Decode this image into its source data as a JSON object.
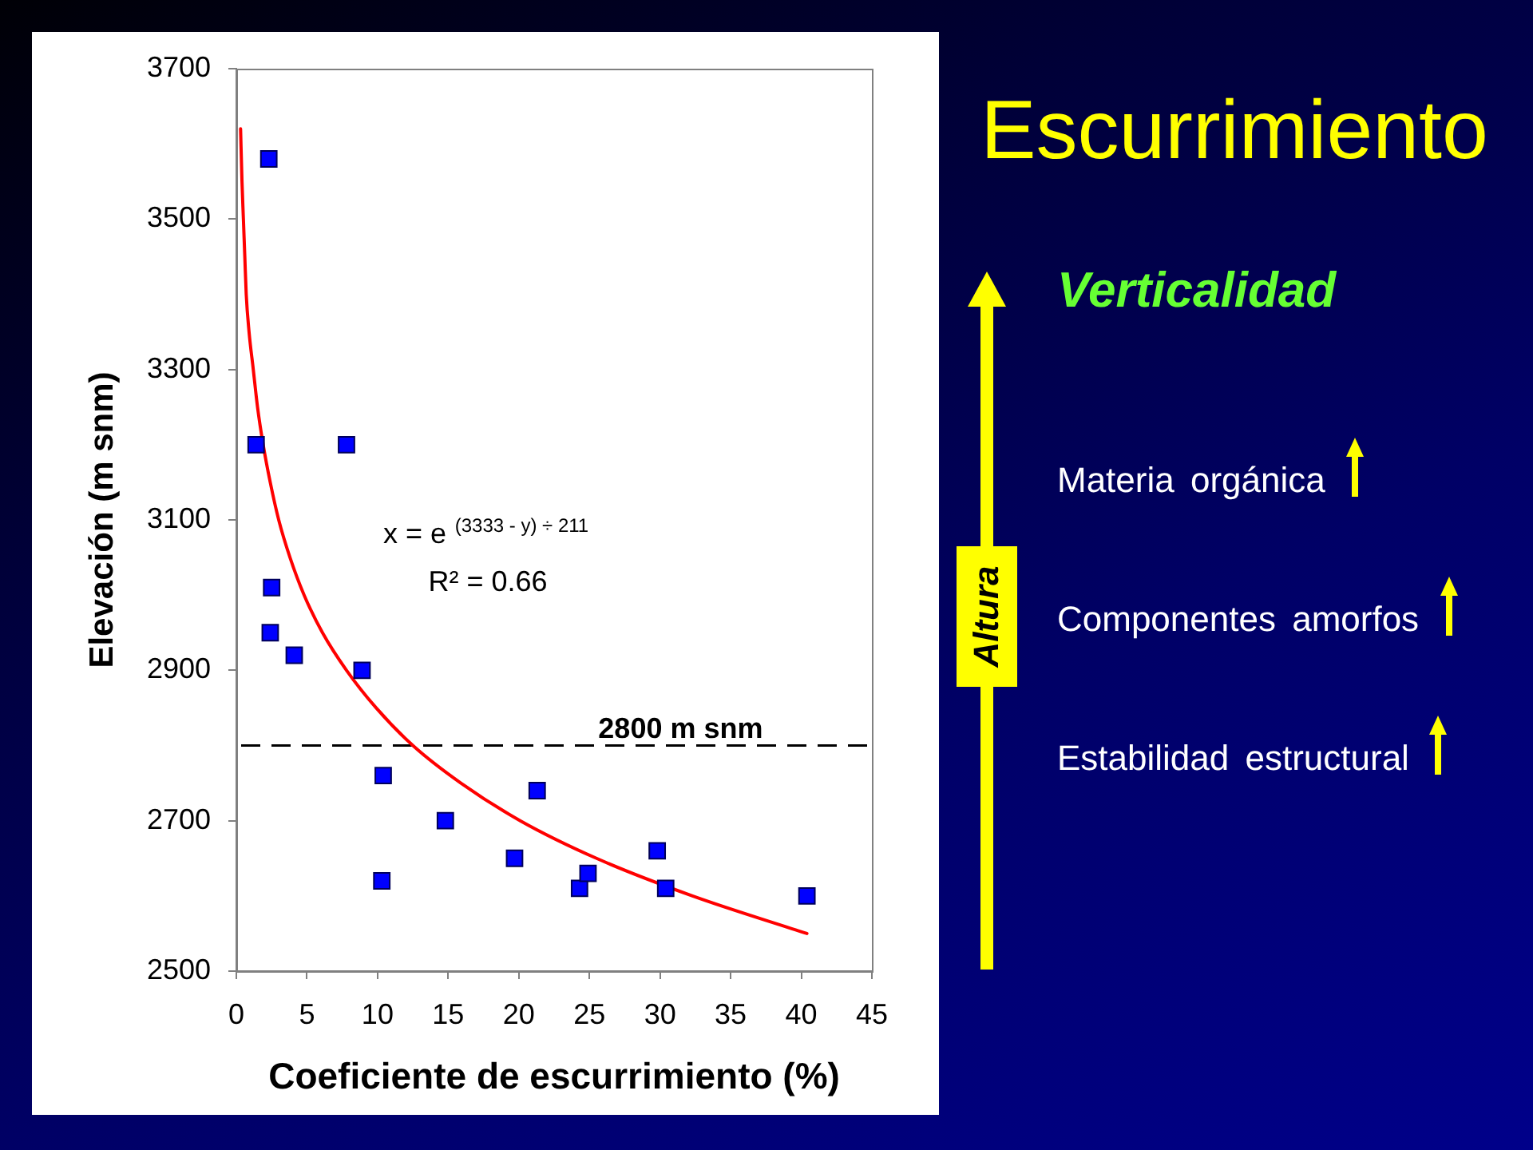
{
  "chart_data": [
    {
      "type": "scatter",
      "xlabel": "Coeficiente de escurrimiento (%)",
      "ylabel": "Elevación (m snm)",
      "xlim": [
        0,
        45
      ],
      "xticks": [
        0,
        5,
        10,
        15,
        20,
        25,
        30,
        35,
        40,
        45
      ],
      "ylim": [
        2500,
        3700
      ],
      "yticks": [
        2500,
        2700,
        2900,
        3100,
        3300,
        3500,
        3700
      ],
      "marker": "square",
      "series": [
        {
          "type": "scatter",
          "color": "#0000ff",
          "x": [
            1.4,
            2.3,
            2.4,
            2.5,
            4.1,
            7.8,
            8.9,
            10.3,
            10.4,
            14.8,
            19.7,
            21.3,
            24.3,
            24.9,
            29.8,
            30.4,
            40.4
          ],
          "values": [
            3200,
            3580,
            2950,
            3010,
            2920,
            3200,
            2900,
            2620,
            2760,
            2700,
            2650,
            2740,
            2610,
            2630,
            2660,
            2610,
            2600
          ]
        },
        {
          "type": "line",
          "color": "#ff0000",
          "marker": "none",
          "x": [
            0.3,
            0.4,
            0.5,
            0.6,
            0.7,
            0.9,
            1.2,
            1.5,
            1.9,
            2.4,
            3.0,
            3.8,
            4.8,
            6.1,
            7.8,
            9.9,
            12.5,
            15.9,
            20.1,
            25.5,
            32.3,
            40.4
          ],
          "values": [
            3620,
            3550,
            3500,
            3450,
            3400,
            3350,
            3300,
            3250,
            3200,
            3150,
            3100,
            3050,
            3000,
            2950,
            2900,
            2850,
            2800,
            2750,
            2700,
            2650,
            2600,
            2550
          ]
        }
      ],
      "ref_lines": [
        {
          "axis": "y",
          "value": 2800,
          "label": "2800 m snm",
          "color": "#000000",
          "line_style": "dashed"
        }
      ],
      "annotations": [
        "x = e$^{(3333 - y) ÷ 211}$",
        "R² = 0.66"
      ]
    },
    {
      "type": "other",
      "title": "Escurrimiento",
      "subtitle": "Verticalidad",
      "annotations": [
        "Altura",
        "Materia orgánica",
        "Componentes amorfos",
        "Estabilidad estructural"
      ]
    }
  ]
}
